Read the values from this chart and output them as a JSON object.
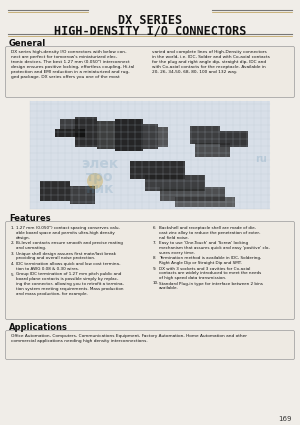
{
  "title_line1": "DX SERIES",
  "title_line2": "HIGH-DENSITY I/O CONNECTORS",
  "page_bg": "#f0ede8",
  "section_general_title": "General",
  "general_text_left": "DX series high-density I/O connectors with below con-\nnect are perfect for tomorrow's miniaturized elec-\ntronic devices. The best 1.27 mm (0.050\") interconnect\ndesign ensures positive locking, effortless coupling, Hi-tal\nprotection and EMI reduction in a miniaturized and rug-\nged package. DX series offers you one of the most",
  "general_text_right": "varied and complete lines of High-Density connectors\nin the world, i.e. IDC, Solder and with Co-axial contacts\nfor the plug and right angle dip, straight dip, IDC and\nwith Co-axial contacts for the receptacle. Available in\n20, 26, 34,50, 68, 80, 100 and 132 way.",
  "section_features_title": "Features",
  "feat_left": [
    [
      "1.",
      "1.27 mm (0.050\") contact spacing conserves valu-\nable board space and permits ultra-high density\ndesign."
    ],
    [
      "2.",
      "Bi-level contacts ensure smooth and precise mating\nand unmating."
    ],
    [
      "3.",
      "Unique shell design assures first mate/last break\nproviding and overall noise protection."
    ],
    [
      "4.",
      "IDC termination allows quick and low cost termina-\ntion to AWG 0.08 & 0.30 wires."
    ],
    [
      "5.",
      "Group IDC termination of 1.27 mm pitch public and\nboard plane contacts is possible simply by replac-\ning the connector, allowing you to retrofit a termina-\ntion system meeting requirements. Mass production\nand mass production, for example."
    ]
  ],
  "feat_right": [
    [
      "6.",
      "Backshell and receptacle shell are made of die-\ncast zinc alloy to reduce the penetration of exter-\nnal field noise."
    ],
    [
      "7.",
      "Easy to use 'One-Touch' and 'Screw' locking\nmechanism that assures quick and easy 'positive' clo-\nsures every time."
    ],
    [
      "8.",
      "Termination method is available in IDC, Soldering,\nRight Angle Dip or Straight Dip and SMT."
    ],
    [
      "9.",
      "DX with 3 sockets and 3 cavities for Co-axial\ncontacts are widely introduced to meet the needs\nof high speed data transmission."
    ],
    [
      "10.",
      "Standard Plug-in type for interface between 2 bins\navailable."
    ]
  ],
  "section_applications_title": "Applications",
  "applications_text": "Office Automation, Computers, Communications Equipment, Factory Automation, Home Automation and other\ncommercial applications needing high density interconnections.",
  "page_number": "169",
  "accent_color": "#b89a50",
  "box_bg": "#eeeae3",
  "box_edge": "#999999",
  "text_color": "#111111",
  "title_color": "#111111",
  "line_color": "#777777"
}
